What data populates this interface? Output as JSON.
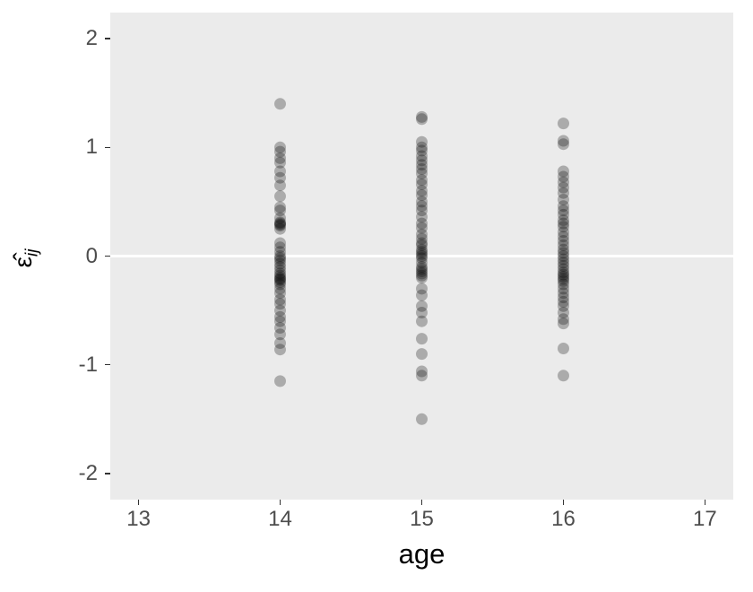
{
  "chart_data": {
    "type": "scatter",
    "title": "",
    "xlabel": "age",
    "ylabel_base": "ε̂",
    "ylabel_sub": "ij",
    "xlim": [
      12.8,
      17.2
    ],
    "ylim": [
      -2.24,
      2.24
    ],
    "x_ticks": [
      13,
      14,
      15,
      16,
      17
    ],
    "y_ticks": [
      -2,
      -1,
      0,
      1,
      2
    ],
    "grid": false,
    "legend": "none",
    "panel_background": "#EBEBEB",
    "reference_line_y": 0,
    "reference_line_color": "#FFFFFF",
    "point_color": "#000000",
    "point_opacity": 0.27,
    "point_radius": 6.5,
    "series": [
      {
        "name": "age 14",
        "x": 14,
        "residuals": [
          1.4,
          1.0,
          0.96,
          0.9,
          0.86,
          0.78,
          0.72,
          0.65,
          0.55,
          0.45,
          0.42,
          0.35,
          0.31,
          0.3,
          0.29,
          0.28,
          0.25,
          0.12,
          0.08,
          0.04,
          0.0,
          -0.02,
          -0.04,
          -0.07,
          -0.1,
          -0.13,
          -0.16,
          -0.18,
          -0.2,
          -0.21,
          -0.22,
          -0.24,
          -0.26,
          -0.3,
          -0.34,
          -0.4,
          -0.44,
          -0.5,
          -0.56,
          -0.6,
          -0.66,
          -0.72,
          -0.8,
          -0.86,
          -1.15
        ]
      },
      {
        "name": "age 15",
        "x": 15,
        "residuals": [
          1.28,
          1.26,
          1.05,
          1.0,
          0.97,
          0.92,
          0.88,
          0.84,
          0.8,
          0.76,
          0.7,
          0.66,
          0.6,
          0.56,
          0.5,
          0.46,
          0.42,
          0.36,
          0.3,
          0.26,
          0.2,
          0.16,
          0.12,
          0.1,
          0.06,
          0.04,
          0.02,
          0.0,
          -0.02,
          -0.06,
          -0.1,
          -0.12,
          -0.14,
          -0.16,
          -0.18,
          -0.2,
          -0.3,
          -0.36,
          -0.46,
          -0.52,
          -0.6,
          -0.76,
          -0.9,
          -1.06,
          -1.1,
          -1.5
        ]
      },
      {
        "name": "age 16",
        "x": 16,
        "residuals": [
          1.22,
          1.06,
          1.03,
          0.78,
          0.73,
          0.68,
          0.63,
          0.58,
          0.52,
          0.46,
          0.42,
          0.38,
          0.33,
          0.3,
          0.27,
          0.22,
          0.18,
          0.14,
          0.1,
          0.06,
          0.03,
          0.0,
          -0.03,
          -0.06,
          -0.09,
          -0.12,
          -0.15,
          -0.17,
          -0.19,
          -0.21,
          -0.23,
          -0.26,
          -0.3,
          -0.34,
          -0.38,
          -0.42,
          -0.46,
          -0.52,
          -0.58,
          -0.62,
          -0.85,
          -1.1
        ]
      }
    ]
  }
}
